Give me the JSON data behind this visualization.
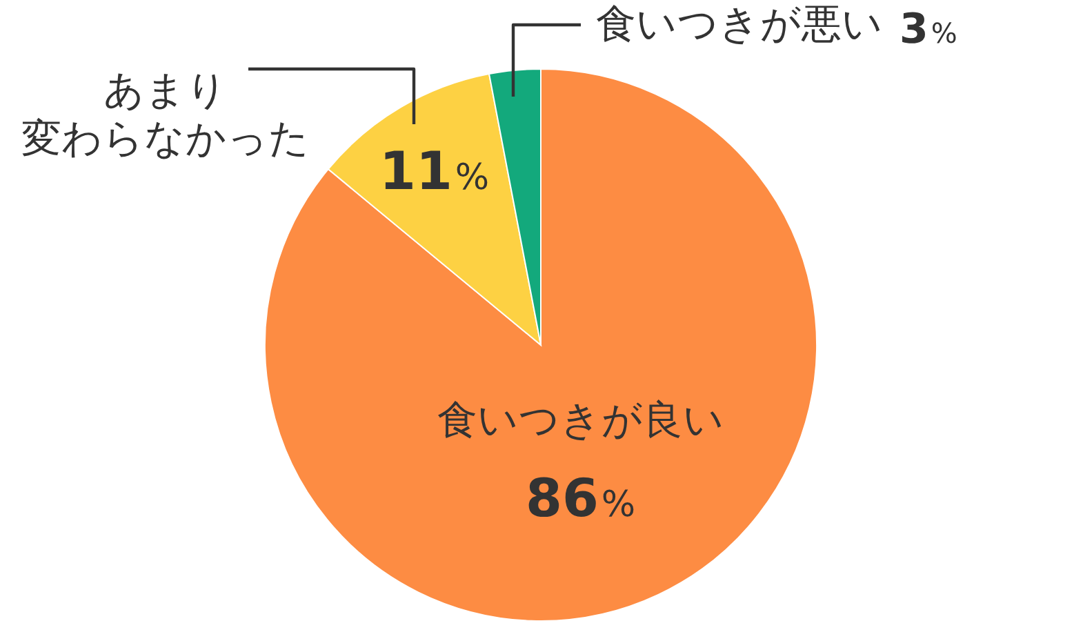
{
  "chart_data": {
    "type": "pie",
    "categories": [
      "食いつきが良い",
      "あまり変わらなかった",
      "食いつきが悪い"
    ],
    "values": [
      86,
      11,
      3
    ],
    "colors": [
      "#fd8c43",
      "#fdd143",
      "#13a97c"
    ],
    "value_labels": [
      "86%",
      "11%",
      "3%"
    ]
  }
}
